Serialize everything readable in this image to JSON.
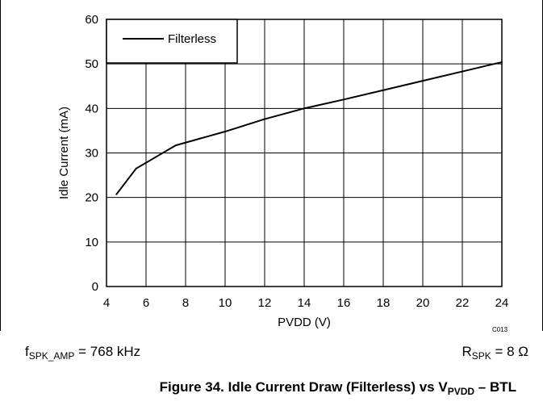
{
  "chart_data": {
    "type": "line",
    "xlabel": "PVDD (V)",
    "ylabel": "Idle Current (mA)",
    "xlim": [
      4,
      24
    ],
    "ylim": [
      0,
      60
    ],
    "x_ticks": [
      "4",
      "6",
      "8",
      "10",
      "12",
      "14",
      "16",
      "18",
      "20",
      "22",
      "24"
    ],
    "y_ticks": [
      "0",
      "10",
      "20",
      "30",
      "40",
      "50",
      "60"
    ],
    "grid": true,
    "legend_position": "top-left",
    "series": [
      {
        "name": "Filterless",
        "color": "#000000",
        "x": [
          4.5,
          5.5,
          7.5,
          10,
          12,
          14,
          16,
          18,
          20,
          22,
          24
        ],
        "y": [
          20.7,
          26.5,
          31.7,
          34.8,
          37.6,
          40.0,
          42.0,
          44.1,
          46.2,
          48.3,
          50.4
        ]
      }
    ]
  },
  "figure_code": "C013",
  "conditions": {
    "left": {
      "symbol": "f",
      "subscript": "SPK_AMP",
      "rest": " = 768 kHz"
    },
    "right": {
      "symbol": "R",
      "subscript": "SPK",
      "rest": " = 8 Ω"
    }
  },
  "caption": {
    "main": "Figure 34. Idle Current Draw (Filterless) vs V",
    "subscript": "PVDD",
    "suffix": " – BTL"
  }
}
